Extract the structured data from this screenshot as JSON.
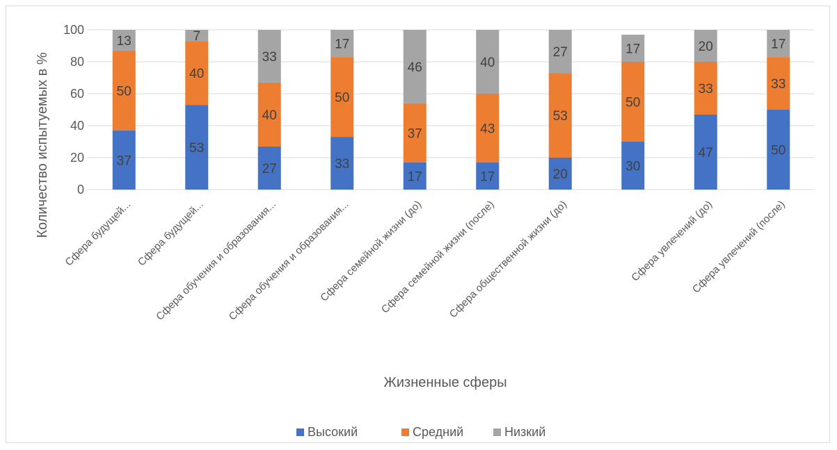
{
  "chart_data": {
    "type": "bar",
    "stacked": true,
    "xlabel": "Жизненные сферы",
    "ylabel": "Количество испытуемых в %",
    "ylim": [
      0,
      100
    ],
    "yticks": [
      0,
      20,
      40,
      60,
      80,
      100
    ],
    "grid": true,
    "legend_position": "bottom",
    "categories": [
      "Сфера будущей...",
      "Сфера будущей...",
      "Сфера обучения и образования...",
      "Сфера обучения и образования...",
      "Сфера семейной жизни (до)",
      "Сфера семейной жизни (после)",
      "Сфера общественной жизни (до)",
      "",
      "Сфера увлечений (до)",
      "Сфера увлечений (после)"
    ],
    "series": [
      {
        "name": "Высокий",
        "color": "#4472c4",
        "values": [
          37,
          53,
          27,
          33,
          17,
          17,
          20,
          30,
          47,
          50
        ]
      },
      {
        "name": "Средний",
        "color": "#ed7d31",
        "values": [
          50,
          40,
          40,
          50,
          37,
          43,
          53,
          50,
          33,
          33
        ]
      },
      {
        "name": "Низкий",
        "color": "#a5a5a5",
        "values": [
          13,
          7,
          33,
          17,
          46,
          40,
          27,
          17,
          20,
          17
        ]
      }
    ]
  }
}
